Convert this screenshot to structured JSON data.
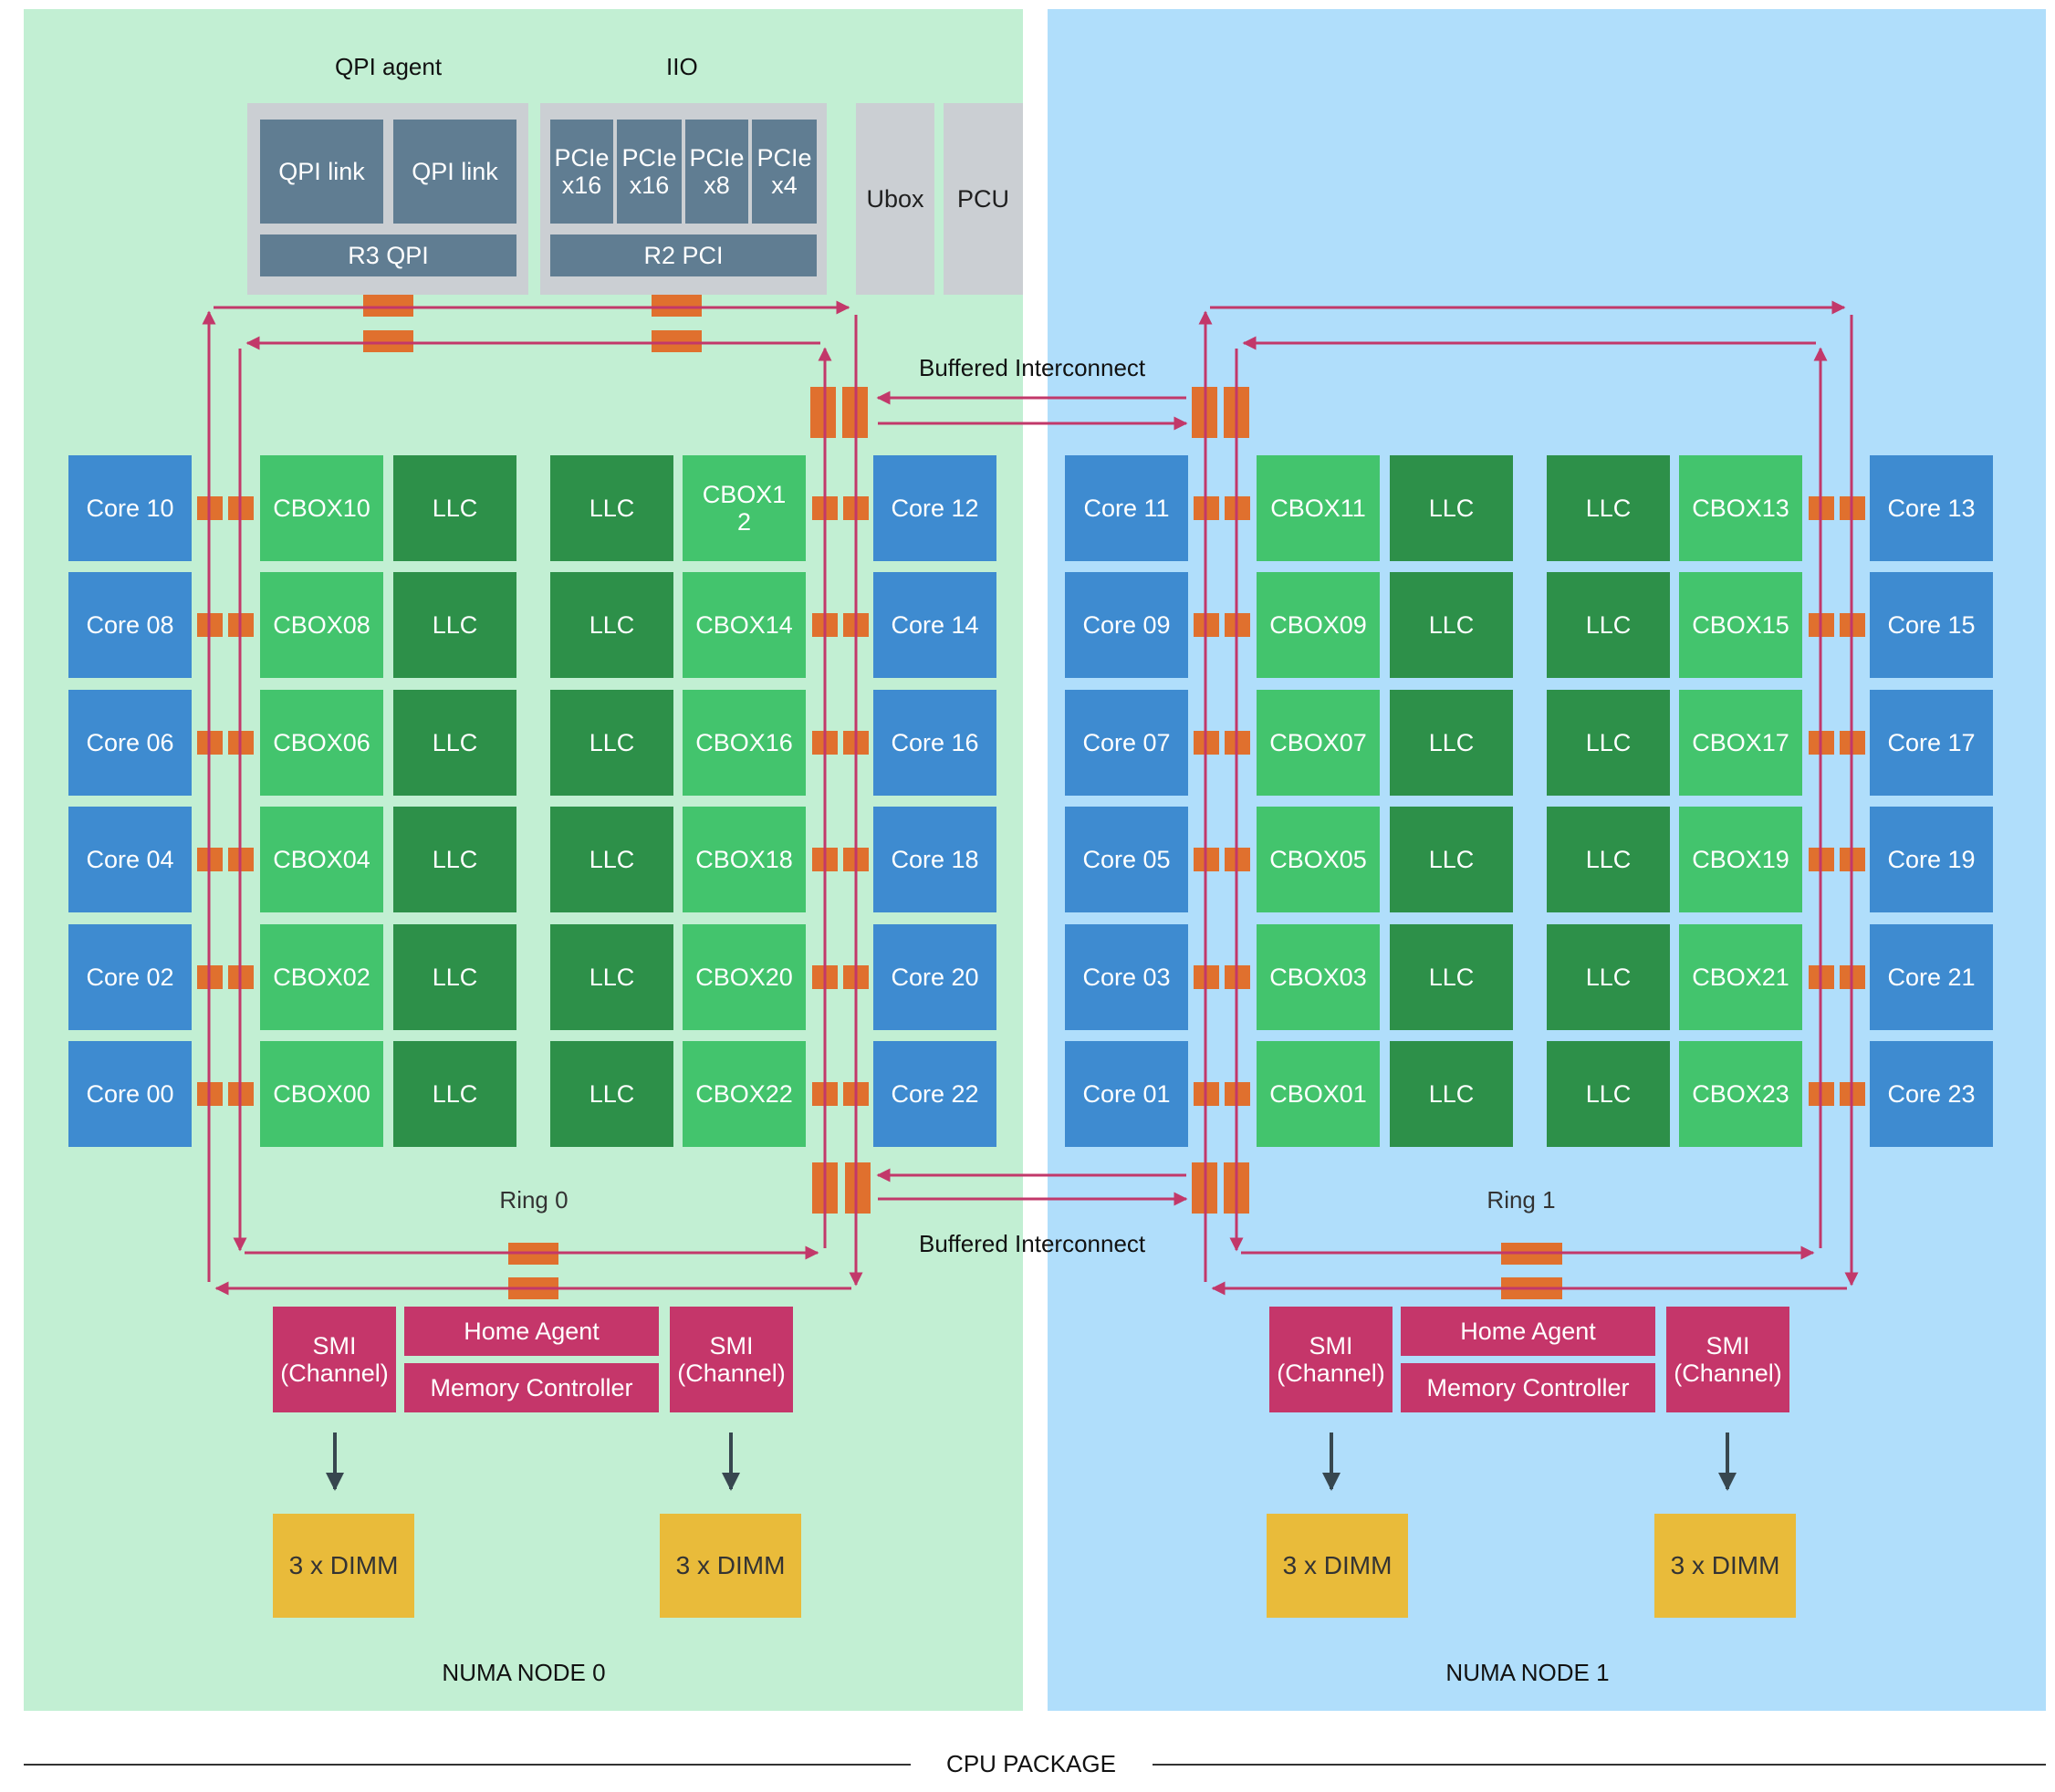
{
  "labels": {
    "qpi_agent": "QPI agent",
    "iio": "IIO",
    "buffered_top": "Buffered Interconnect",
    "buffered_bottom": "Buffered Interconnect",
    "cpu_package": "CPU PACKAGE"
  },
  "uncore": {
    "qpi_link_1": "QPI link",
    "qpi_link_2": "QPI link",
    "r3_qpi": "R3 QPI",
    "pcie": [
      "PCIe\nx16",
      "PCIe\nx16",
      "PCIe\nx8",
      "PCIe\nx4"
    ],
    "r2_pci": "R2 PCI",
    "ubox": "Ubox",
    "pcu": "PCU"
  },
  "nodes": [
    {
      "name": "NUMA NODE 0",
      "ring": "Ring 0",
      "left_cores": [
        "Core 10",
        "Core 08",
        "Core 06",
        "Core 04",
        "Core 02",
        "Core 00"
      ],
      "left_cbox": [
        "CBOX10",
        "CBOX08",
        "CBOX06",
        "CBOX04",
        "CBOX02",
        "CBOX00"
      ],
      "right_cbox": [
        "CBOX1\n2",
        "CBOX14",
        "CBOX16",
        "CBOX18",
        "CBOX20",
        "CBOX22"
      ],
      "right_cores": [
        "Core 12",
        "Core 14",
        "Core 16",
        "Core 18",
        "Core 20",
        "Core 22"
      ],
      "llc": "LLC",
      "smi_left": "SMI\n(Channel)",
      "smi_right": "SMI\n(Channel)",
      "home_agent": "Home Agent",
      "memory_controller": "Memory Controller",
      "dimm_left": "3 x DIMM",
      "dimm_right": "3 x DIMM"
    },
    {
      "name": "NUMA NODE 1",
      "ring": "Ring 1",
      "left_cores": [
        "Core 11",
        "Core 09",
        "Core 07",
        "Core 05",
        "Core 03",
        "Core 01"
      ],
      "left_cbox": [
        "CBOX11",
        "CBOX09",
        "CBOX07",
        "CBOX05",
        "CBOX03",
        "CBOX01"
      ],
      "right_cbox": [
        "CBOX13",
        "CBOX15",
        "CBOX17",
        "CBOX19",
        "CBOX21",
        "CBOX23"
      ],
      "right_cores": [
        "Core 13",
        "Core 15",
        "Core 17",
        "Core 19",
        "Core 21",
        "Core 23"
      ],
      "llc": "LLC",
      "smi_left": "SMI\n(Channel)",
      "smi_right": "SMI\n(Channel)",
      "home_agent": "Home Agent",
      "memory_controller": "Memory Controller",
      "dimm_left": "3 x DIMM",
      "dimm_right": "3 x DIMM"
    }
  ],
  "colors": {
    "node0_bg": "#c2efd3",
    "node1_bg": "#b0defb",
    "core": "#3e8bd0",
    "cbox": "#43c46d",
    "llc": "#2d9049",
    "uncore_slate": "#607d92",
    "uncore_grey": "#cbcfd3",
    "memory": "#c5366a",
    "dimm": "#e9bb3a",
    "ring_stop": "#e0702e",
    "ring_line": "#c2386a",
    "arrow": "#37474f"
  }
}
